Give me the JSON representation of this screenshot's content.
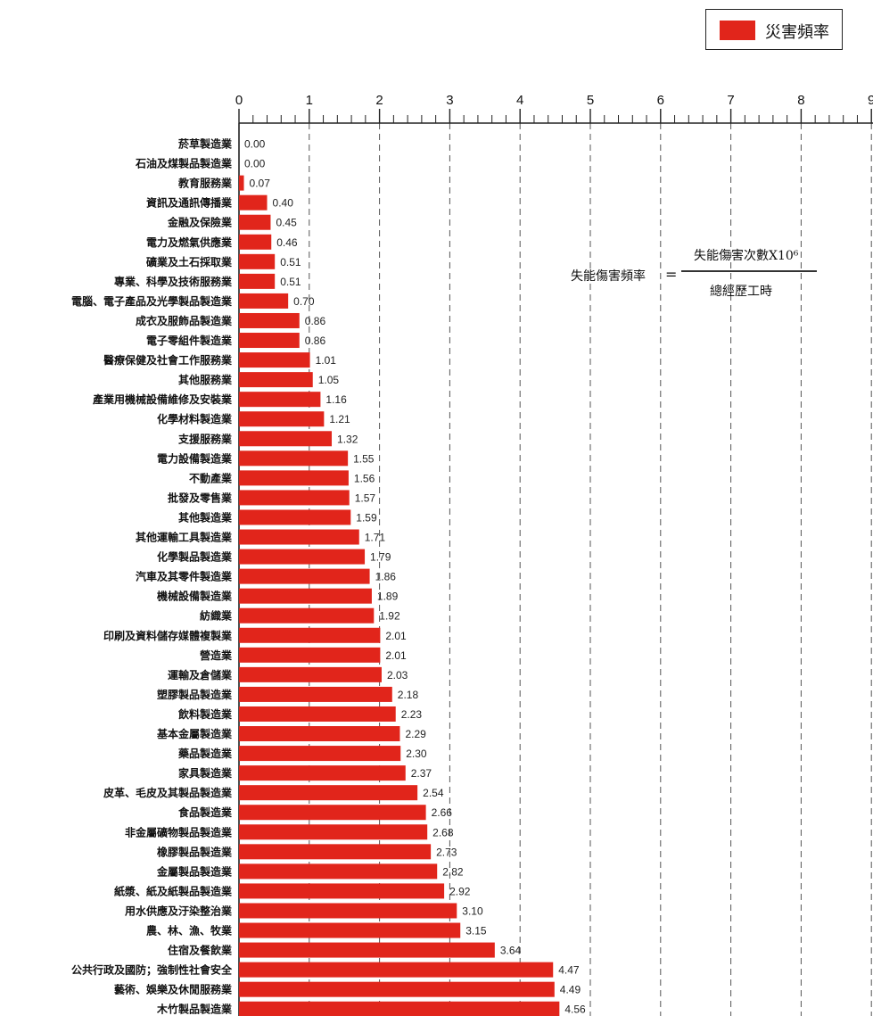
{
  "legend": {
    "label": "災害頻率",
    "color": "#e1251b"
  },
  "formula": {
    "lhs": "失能傷害頻率",
    "eq": "=",
    "numerator": "失能傷害次數X10⁶",
    "denominator": "總經歷工時"
  },
  "chart_data": {
    "type": "bar",
    "orientation": "horizontal",
    "xlim": [
      0,
      9
    ],
    "ticks": [
      "0",
      "1",
      "2",
      "3",
      "4",
      "5",
      "6",
      "7",
      "8",
      "9"
    ],
    "grid": "dashed vertical",
    "legend_position": "top-right",
    "categories": [
      "菸草製造業",
      "石油及煤製品製造業",
      "教育服務業",
      "資訊及通訊傳播業",
      "金融及保險業",
      "電力及燃氣供應業",
      "礦業及土石採取業",
      "專業、科學及技術服務業",
      "電腦、電子產品及光學製品製造業",
      "成衣及服飾品製造業",
      "電子零組件製造業",
      "醫療保健及社會工作服務業",
      "其他服務業",
      "產業用機械設備維修及安裝業",
      "化學材料製造業",
      "支援服務業",
      "電力設備製造業",
      "不動產業",
      "批發及零售業",
      "其他製造業",
      "其他運輸工具製造業",
      "化學製品製造業",
      "汽車及其零件製造業",
      "機械設備製造業",
      "紡織業",
      "印刷及資料儲存媒體複製業",
      "營造業",
      "運輸及倉儲業",
      "塑膠製品製造業",
      "飲料製造業",
      "基本金屬製造業",
      "藥品製造業",
      "家具製造業",
      "皮革、毛皮及其製品製造業",
      "食品製造業",
      "非金屬礦物製品製造業",
      "橡膠製品製造業",
      "金屬製品製造業",
      "紙漿、紙及紙製品製造業",
      "用水供應及汙染整治業",
      "農、林、漁、牧業",
      "住宿及餐飲業",
      "公共行政及國防；強制性社會安全",
      "藝術、娛樂及休閒服務業",
      "木竹製品製造業"
    ],
    "value_labels": [
      "0.00",
      "0.00",
      "0.07",
      "0.40",
      "0.45",
      "0.46",
      "0.51",
      "0.51",
      "0.70",
      "0.86",
      "0.86",
      "1.01",
      "1.05",
      "1.16",
      "1.21",
      "1.32",
      "1.55",
      "1.56",
      "1.57",
      "1.59",
      "1.71",
      "1.79",
      "1.86",
      "1.89",
      "1.92",
      "2.01",
      "2.01",
      "2.03",
      "2.18",
      "2.23",
      "2.29",
      "2.30",
      "2.37",
      "2.54",
      "2.66",
      "2.68",
      "2.73",
      "2.82",
      "2.92",
      "3.10",
      "3.15",
      "3.64",
      "4.47",
      "4.49",
      "4.56"
    ],
    "series": [
      {
        "name": "災害頻率",
        "color": "#e1251b",
        "values": [
          0.0,
          0.0,
          0.07,
          0.4,
          0.45,
          0.46,
          0.51,
          0.51,
          0.7,
          0.86,
          0.86,
          1.01,
          1.05,
          1.16,
          1.21,
          1.32,
          1.55,
          1.56,
          1.57,
          1.59,
          1.71,
          1.79,
          1.86,
          1.89,
          1.92,
          2.01,
          2.01,
          2.03,
          2.18,
          2.23,
          2.29,
          2.3,
          2.37,
          2.54,
          2.66,
          2.68,
          2.73,
          2.82,
          2.92,
          3.1,
          3.15,
          3.64,
          4.47,
          4.49,
          4.56
        ]
      }
    ]
  }
}
